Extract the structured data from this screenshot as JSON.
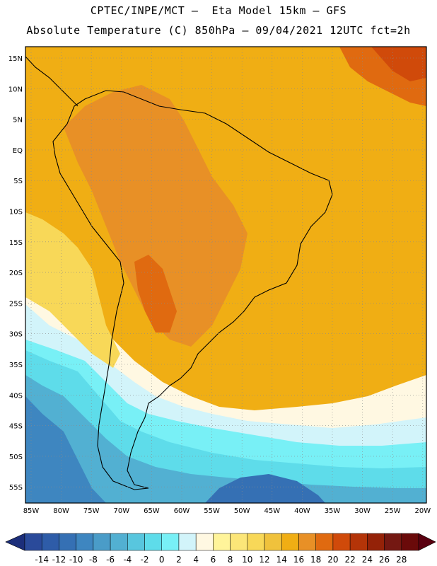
{
  "header": {
    "line1": "CPTEC/INPE/MCT –  Eta Model 15km – GFS",
    "line2": "Absolute Temperature (C) 850hPa – 09/04/2021 12UTC fct=2h"
  },
  "axes": {
    "lat_labels": [
      "15N",
      "10N",
      "5N",
      "EQ",
      "5S",
      "10S",
      "15S",
      "20S",
      "25S",
      "30S",
      "35S",
      "40S",
      "45S",
      "50S",
      "55S"
    ],
    "lon_labels": [
      "85W",
      "80W",
      "75W",
      "70W",
      "65W",
      "60W",
      "55W",
      "50W",
      "45W",
      "40W",
      "35W",
      "30W",
      "25W",
      "20W"
    ]
  },
  "colorbar": {
    "levels": [
      "-14",
      "-12",
      "-10",
      "-8",
      "-6",
      "-4",
      "-2",
      "0",
      "2",
      "4",
      "6",
      "8",
      "10",
      "12",
      "14",
      "16",
      "18",
      "20",
      "22",
      "24",
      "26",
      "28"
    ],
    "colors": [
      "#2a4a9a",
      "#2e5ca8",
      "#3570b4",
      "#3e86c0",
      "#4a9cc8",
      "#52b0d2",
      "#58c6de",
      "#5edcea",
      "#78f0f6",
      "#d2f4fa",
      "#fff8e2",
      "#fff49a",
      "#fce678",
      "#f8d858",
      "#f0c23c",
      "#f0ae14",
      "#e89026",
      "#e06a10",
      "#d04a0a",
      "#b43408",
      "#942208",
      "#741812",
      "#6a0a0a"
    ]
  }
}
